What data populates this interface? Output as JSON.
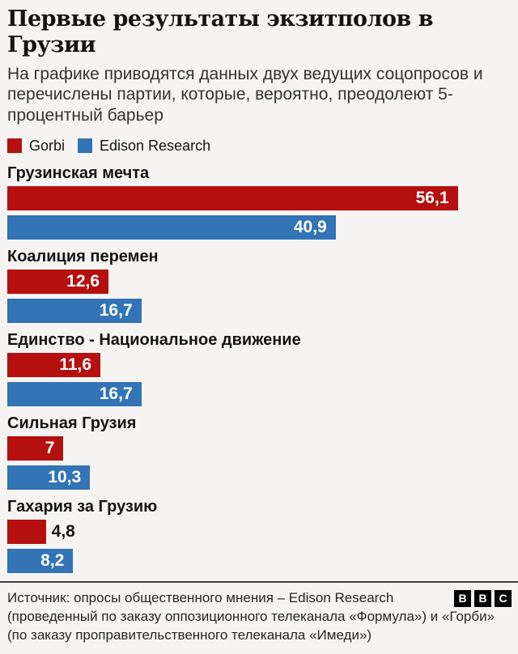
{
  "page": {
    "background_color": "#f5f4f2",
    "accent_red": "#b50f0f",
    "accent_blue": "#3274b5"
  },
  "chart_data": {
    "type": "bar",
    "orientation": "horizontal",
    "title": "Первые результаты экзитполов в Грузии",
    "subtitle": "На графике приводятся данных двух ведущих соцопросов и перечислены партии, которые, вероятно, преодолеют 5-процентный барьер",
    "categories": [
      "Грузинская мечта",
      "Коалиция перемен",
      "Единство - Национальное движение",
      "Сильная Грузия",
      "Гахария за Грузию"
    ],
    "series": [
      {
        "name": "Gorbi",
        "color": "#b50f0f",
        "values": [
          56.1,
          12.6,
          11.6,
          7,
          4.8
        ],
        "labels": [
          "56,1",
          "12,6",
          "11,6",
          "7",
          "4,8"
        ]
      },
      {
        "name": "Edison Research",
        "color": "#3274b5",
        "values": [
          40.9,
          16.7,
          16.7,
          10.3,
          8.2
        ],
        "labels": [
          "40,9",
          "16,7",
          "16,7",
          "10,3",
          "8,2"
        ]
      }
    ],
    "xlim": [
      0,
      62.7
    ],
    "grid": false,
    "legend_position": "top",
    "value_labels": "inside-end"
  },
  "footer": {
    "lines": [
      "Источник: опросы общественного мнения – Edison Research",
      "(проведенный по заказу оппозиционного телеканала «Формула») и «Горби»",
      "(по заказу проправительственного телеканала «Имеди»)"
    ],
    "logo_letters": [
      "B",
      "B",
      "C"
    ]
  }
}
